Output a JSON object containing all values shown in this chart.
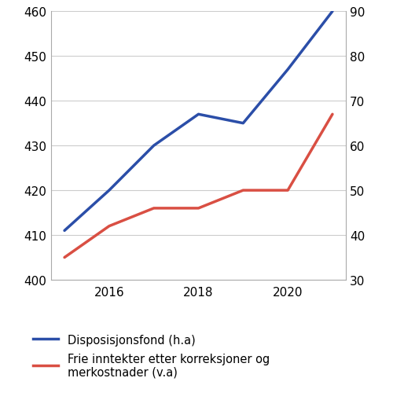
{
  "years": [
    2015,
    2016,
    2017,
    2018,
    2019,
    2020,
    2021
  ],
  "blue_values": [
    411,
    420,
    430,
    437,
    435,
    447,
    460
  ],
  "red_values": [
    35,
    42,
    46,
    46,
    50,
    50,
    67
  ],
  "blue_color": "#2B4EA8",
  "red_color": "#D94F43",
  "left_ylim": [
    400,
    460
  ],
  "right_ylim": [
    30,
    90
  ],
  "left_yticks": [
    400,
    410,
    420,
    430,
    440,
    450,
    460
  ],
  "right_yticks": [
    30,
    40,
    50,
    60,
    70,
    80,
    90
  ],
  "xticks": [
    2016,
    2018,
    2020
  ],
  "xlim": [
    2014.7,
    2021.3
  ],
  "legend_blue": "Disposisjonsfond (h.a)",
  "legend_red": "Frie inntekter etter korreksjoner og\nmerkostnader (v.a)",
  "line_width": 2.5,
  "background_color": "#ffffff",
  "grid_color": "#cccccc"
}
